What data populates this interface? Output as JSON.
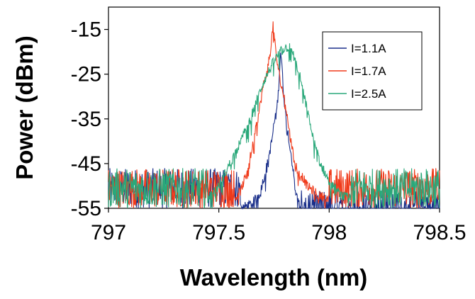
{
  "chart_data": {
    "type": "line",
    "title": "",
    "xlabel": "Wavelength (nm)",
    "ylabel": "Power (dBm)",
    "xlim": [
      797,
      798.5
    ],
    "ylim": [
      -55,
      -10
    ],
    "xticks": [
      "797",
      "797.5",
      "798",
      "798.5"
    ],
    "yticks": [
      "-15",
      "-25",
      "-35",
      "-45",
      "-55"
    ],
    "xtick_values": [
      797,
      797.5,
      798,
      798.5
    ],
    "ytick_values": [
      -15,
      -25,
      -35,
      -45,
      -55
    ],
    "grid": false,
    "legend_position": "top-right",
    "noise_floor": [
      -55,
      -46
    ],
    "series": [
      {
        "name": "I=1.1A",
        "color": "#1a2f8a",
        "points": [
          [
            797.6,
            -55
          ],
          [
            797.65,
            -54
          ],
          [
            797.68,
            -52
          ],
          [
            797.7,
            -49
          ],
          [
            797.72,
            -45
          ],
          [
            797.74,
            -40
          ],
          [
            797.75,
            -36
          ],
          [
            797.76,
            -34
          ],
          [
            797.77,
            -29
          ],
          [
            797.775,
            -24
          ],
          [
            797.78,
            -20
          ],
          [
            797.785,
            -22
          ],
          [
            797.79,
            -27
          ],
          [
            797.8,
            -33
          ],
          [
            797.81,
            -37
          ],
          [
            797.82,
            -40
          ],
          [
            797.83,
            -44
          ],
          [
            797.84,
            -48
          ],
          [
            797.85,
            -52
          ],
          [
            797.87,
            -55
          ]
        ]
      },
      {
        "name": "I=1.7A",
        "color": "#f03a1a",
        "points": [
          [
            797.57,
            -53
          ],
          [
            797.6,
            -51
          ],
          [
            797.62,
            -48
          ],
          [
            797.65,
            -42
          ],
          [
            797.68,
            -34
          ],
          [
            797.7,
            -28
          ],
          [
            797.72,
            -24
          ],
          [
            797.73,
            -21
          ],
          [
            797.74,
            -17
          ],
          [
            797.745,
            -14
          ],
          [
            797.75,
            -16
          ],
          [
            797.76,
            -21
          ],
          [
            797.77,
            -24
          ],
          [
            797.78,
            -27
          ],
          [
            797.8,
            -31
          ],
          [
            797.82,
            -38
          ],
          [
            797.84,
            -44
          ],
          [
            797.86,
            -47
          ],
          [
            797.88,
            -48
          ],
          [
            797.9,
            -50
          ],
          [
            797.95,
            -52
          ],
          [
            798.0,
            -53
          ]
        ]
      },
      {
        "name": "I=2.5A",
        "color": "#2aa87a",
        "points": [
          [
            797.45,
            -53
          ],
          [
            797.5,
            -50
          ],
          [
            797.55,
            -45
          ],
          [
            797.6,
            -40
          ],
          [
            797.65,
            -34
          ],
          [
            797.7,
            -27
          ],
          [
            797.75,
            -22
          ],
          [
            797.78,
            -20
          ],
          [
            797.8,
            -19
          ],
          [
            797.82,
            -19
          ],
          [
            797.84,
            -21
          ],
          [
            797.87,
            -26
          ],
          [
            797.9,
            -33
          ],
          [
            797.93,
            -40
          ],
          [
            797.96,
            -45
          ],
          [
            798.0,
            -49
          ],
          [
            798.05,
            -52
          ],
          [
            798.1,
            -53
          ]
        ]
      }
    ]
  }
}
